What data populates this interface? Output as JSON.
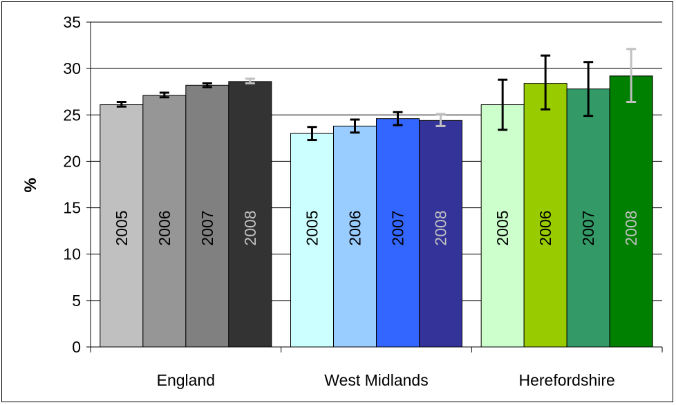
{
  "chart_data": {
    "type": "bar",
    "title": "",
    "xlabel": "",
    "ylabel": "%",
    "ylim": [
      0,
      35
    ],
    "yticks": [
      0,
      5,
      10,
      15,
      20,
      25,
      30,
      35
    ],
    "grid": true,
    "legend": "none",
    "categories": [
      "England",
      "West Midlands",
      "Herefordshire"
    ],
    "series": [
      {
        "name": "2005",
        "values": [
          26.1,
          23.0,
          26.1
        ],
        "error_low": [
          25.9,
          22.3,
          23.4
        ],
        "error_high": [
          26.4,
          23.7,
          28.8
        ]
      },
      {
        "name": "2006",
        "values": [
          27.1,
          23.8,
          28.4
        ],
        "error_low": [
          26.9,
          23.1,
          25.6
        ],
        "error_high": [
          27.4,
          24.5,
          31.4
        ]
      },
      {
        "name": "2007",
        "values": [
          28.2,
          24.6,
          27.8
        ],
        "error_low": [
          28.0,
          23.9,
          24.9
        ],
        "error_high": [
          28.4,
          25.3,
          30.7
        ]
      },
      {
        "name": "2008",
        "values": [
          28.6,
          24.4,
          29.2
        ],
        "error_low": [
          28.4,
          23.8,
          26.4
        ],
        "error_high": [
          28.9,
          25.1,
          32.1
        ]
      }
    ],
    "colors": [
      [
        "#c0c0c0",
        "#969696",
        "#808080",
        "#333333"
      ],
      [
        "#ccffff",
        "#99ccff",
        "#3366ff",
        "#333399"
      ],
      [
        "#ccffcc",
        "#99cc00",
        "#339966",
        "#008000"
      ]
    ],
    "label_colors": [
      "#000000",
      "#000000",
      "#000000",
      "#c0c0c0"
    ],
    "errorbar_colors": [
      "#000000",
      "#000000",
      "#000000",
      "#c0c0c0"
    ]
  }
}
